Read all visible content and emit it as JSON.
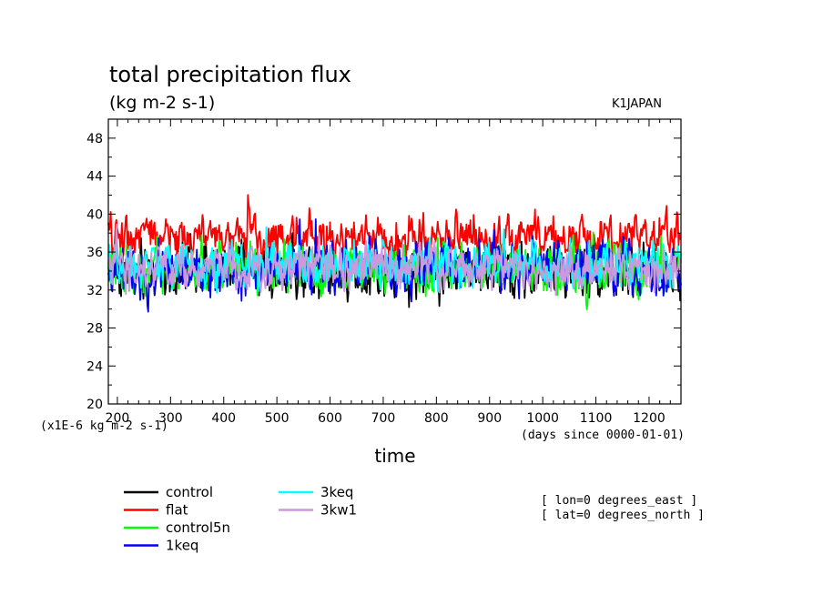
{
  "chart_data": {
    "type": "line",
    "title": "total precipitation flux",
    "subtitle": "(kg m-2 s-1)",
    "region_label": "K1JAPAN",
    "xlabel": "time",
    "x_units": "(days since 0000-01-01)",
    "y_scale_note": "(x1E-6 kg m-2 s-1)",
    "xlim": [
      183,
      1260
    ],
    "ylim": [
      20,
      50
    ],
    "x_ticks": [
      200,
      300,
      400,
      500,
      600,
      700,
      800,
      900,
      1000,
      1100,
      1200
    ],
    "y_ticks": [
      20,
      24,
      28,
      32,
      36,
      40,
      44,
      48
    ],
    "grid": false,
    "series": [
      {
        "name": "control",
        "color": "#000000",
        "mean": 34.0,
        "amp": 2.0,
        "range": [
          29.0,
          38.0
        ]
      },
      {
        "name": "flat",
        "color": "#ff0000",
        "mean": 37.6,
        "amp": 1.6,
        "range": [
          33.0,
          43.0
        ]
      },
      {
        "name": "control5n",
        "color": "#00ff00",
        "mean": 34.3,
        "amp": 1.9,
        "range": [
          29.5,
          41.0
        ]
      },
      {
        "name": "1keq",
        "color": "#0000ff",
        "mean": 34.2,
        "amp": 1.9,
        "range": [
          29.5,
          39.5
        ]
      },
      {
        "name": "3keq",
        "color": "#00ffff",
        "mean": 34.6,
        "amp": 1.7,
        "range": [
          30.5,
          40.0
        ]
      },
      {
        "name": "3kw1",
        "color": "#cc99dd",
        "mean": 34.4,
        "amp": 1.6,
        "range": [
          29.5,
          40.5
        ]
      }
    ],
    "annotations": [
      "[ lon=0 degrees_east ]",
      "[ lat=0 degrees_north ]"
    ]
  }
}
